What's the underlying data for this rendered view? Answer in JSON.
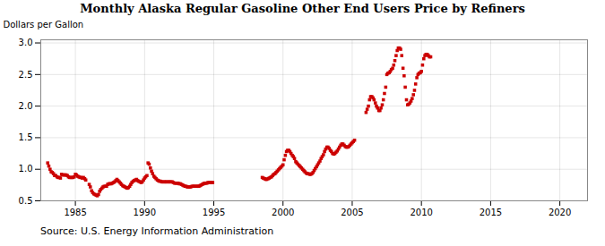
{
  "chart_data": {
    "type": "scatter",
    "title": "Monthly Alaska Regular Gasoline Other End Users Price by Refiners",
    "ylabel": "Dollars per Gallon",
    "annotation": "Source: U.S. Energy Information Administration",
    "xlim": [
      1982.5,
      2022
    ],
    "ylim": [
      0.5,
      3.05
    ],
    "xticks": [
      1985,
      1990,
      1995,
      2000,
      2005,
      2010,
      2015,
      2020
    ],
    "yticks": [
      0.5,
      {
        "value": 1.0,
        "label": "1.0"
      },
      1.5,
      {
        "value": 2.0,
        "label": "2.0"
      },
      2.5,
      {
        "value": 3.0,
        "label": "3.0"
      }
    ],
    "grid": true,
    "color": "#cc0000",
    "marker": "square",
    "x": [
      1983.0,
      1983.08,
      1983.17,
      1983.25,
      1983.33,
      1983.42,
      1983.5,
      1983.58,
      1983.67,
      1983.75,
      1983.83,
      1983.92,
      1984.0,
      1984.08,
      1984.17,
      1984.25,
      1984.33,
      1984.42,
      1984.5,
      1984.58,
      1984.67,
      1984.75,
      1984.83,
      1984.92,
      1985.0,
      1985.08,
      1985.17,
      1985.25,
      1985.33,
      1985.42,
      1985.5,
      1985.58,
      1985.67,
      1985.75,
      1986.0,
      1986.08,
      1986.17,
      1986.25,
      1986.33,
      1986.42,
      1986.5,
      1986.58,
      1986.67,
      1986.75,
      1986.83,
      1986.92,
      1987.0,
      1987.08,
      1987.17,
      1987.25,
      1987.33,
      1987.42,
      1987.5,
      1987.58,
      1987.67,
      1987.75,
      1987.83,
      1987.92,
      1988.0,
      1988.08,
      1988.17,
      1988.25,
      1988.33,
      1988.42,
      1988.5,
      1988.58,
      1988.67,
      1988.75,
      1988.83,
      1988.92,
      1989.0,
      1989.08,
      1989.17,
      1989.25,
      1989.33,
      1989.42,
      1989.5,
      1989.58,
      1989.67,
      1989.75,
      1989.83,
      1989.92,
      1990.0,
      1990.08,
      1990.17,
      1990.25,
      1990.33,
      1990.42,
      1990.5,
      1990.58,
      1990.67,
      1990.75,
      1990.83,
      1990.92,
      1991.0,
      1991.08,
      1991.17,
      1991.25,
      1991.33,
      1991.42,
      1991.5,
      1991.58,
      1991.67,
      1991.75,
      1991.83,
      1991.92,
      1992.0,
      1992.08,
      1992.17,
      1992.25,
      1992.33,
      1992.42,
      1992.5,
      1992.58,
      1992.67,
      1992.75,
      1992.83,
      1992.92,
      1993.0,
      1993.08,
      1993.17,
      1993.25,
      1993.33,
      1993.42,
      1993.5,
      1993.58,
      1993.67,
      1993.75,
      1993.83,
      1993.92,
      1994.0,
      1994.08,
      1994.17,
      1994.25,
      1994.33,
      1994.42,
      1994.5,
      1994.58,
      1994.67,
      1994.75,
      1994.83,
      1994.92,
      1998.5,
      1998.58,
      1998.67,
      1998.75,
      1998.83,
      1998.92,
      1999.0,
      1999.08,
      1999.17,
      1999.25,
      1999.33,
      1999.42,
      1999.5,
      1999.58,
      1999.67,
      1999.75,
      1999.83,
      1999.92,
      2000.0,
      2000.08,
      2000.17,
      2000.25,
      2000.33,
      2000.42,
      2000.5,
      2000.58,
      2000.67,
      2000.75,
      2000.83,
      2000.92,
      2001.0,
      2001.08,
      2001.17,
      2001.25,
      2001.33,
      2001.42,
      2001.5,
      2001.58,
      2001.67,
      2001.75,
      2001.83,
      2001.92,
      2002.0,
      2002.08,
      2002.17,
      2002.25,
      2002.33,
      2002.42,
      2002.5,
      2002.58,
      2002.67,
      2002.75,
      2002.83,
      2002.92,
      2003.0,
      2003.08,
      2003.17,
      2003.25,
      2003.33,
      2003.42,
      2003.5,
      2003.58,
      2003.67,
      2003.75,
      2003.83,
      2003.92,
      2004.0,
      2004.08,
      2004.17,
      2004.25,
      2004.33,
      2004.42,
      2004.5,
      2004.58,
      2004.67,
      2004.75,
      2004.83,
      2004.92,
      2005.0,
      2005.08,
      2005.17,
      2006.0,
      2006.08,
      2006.17,
      2006.25,
      2006.33,
      2006.42,
      2006.5,
      2006.58,
      2006.67,
      2006.75,
      2006.83,
      2006.92,
      2007.0,
      2007.08,
      2007.17,
      2007.25,
      2007.33,
      2007.42,
      2007.5,
      2007.58,
      2007.67,
      2007.75,
      2007.83,
      2007.92,
      2008.0,
      2008.08,
      2008.17,
      2008.25,
      2008.33,
      2008.42,
      2008.5,
      2008.58,
      2008.67,
      2008.75,
      2008.83,
      2008.92,
      2009.0,
      2009.08,
      2009.17,
      2009.25,
      2009.33,
      2009.42,
      2009.5,
      2009.58,
      2009.67,
      2009.75,
      2009.83,
      2009.92,
      2010.0,
      2010.08,
      2010.17,
      2010.25,
      2010.33,
      2010.42,
      2010.5,
      2010.58,
      2010.67
    ],
    "values": [
      1.1,
      1.05,
      1.0,
      0.96,
      0.95,
      0.93,
      0.9,
      0.9,
      0.88,
      0.87,
      0.87,
      0.86,
      0.92,
      0.91,
      0.91,
      0.91,
      0.91,
      0.9,
      0.88,
      0.87,
      0.87,
      0.87,
      0.87,
      0.88,
      0.92,
      0.91,
      0.89,
      0.88,
      0.87,
      0.87,
      0.86,
      0.87,
      0.85,
      0.83,
      0.76,
      0.72,
      0.66,
      0.63,
      0.61,
      0.6,
      0.59,
      0.58,
      0.6,
      0.65,
      0.68,
      0.7,
      0.72,
      0.73,
      0.73,
      0.73,
      0.76,
      0.77,
      0.77,
      0.77,
      0.78,
      0.79,
      0.8,
      0.82,
      0.84,
      0.82,
      0.8,
      0.78,
      0.76,
      0.74,
      0.73,
      0.72,
      0.71,
      0.7,
      0.71,
      0.73,
      0.76,
      0.79,
      0.81,
      0.82,
      0.83,
      0.84,
      0.82,
      0.81,
      0.8,
      0.79,
      0.8,
      0.83,
      0.86,
      0.88,
      0.9,
      1.1,
      1.08,
      1.02,
      0.97,
      0.93,
      0.89,
      0.87,
      0.85,
      0.83,
      0.82,
      0.81,
      0.81,
      0.8,
      0.8,
      0.8,
      0.8,
      0.8,
      0.8,
      0.8,
      0.8,
      0.8,
      0.8,
      0.79,
      0.78,
      0.78,
      0.78,
      0.78,
      0.77,
      0.77,
      0.76,
      0.75,
      0.74,
      0.73,
      0.73,
      0.72,
      0.72,
      0.72,
      0.72,
      0.73,
      0.73,
      0.73,
      0.73,
      0.73,
      0.73,
      0.73,
      0.74,
      0.75,
      0.76,
      0.77,
      0.78,
      0.78,
      0.78,
      0.79,
      0.79,
      0.79,
      0.79,
      0.79,
      0.87,
      0.86,
      0.85,
      0.84,
      0.84,
      0.85,
      0.86,
      0.87,
      0.88,
      0.9,
      0.92,
      0.93,
      0.95,
      0.97,
      0.99,
      1.01,
      1.03,
      1.05,
      1.07,
      1.15,
      1.22,
      1.28,
      1.3,
      1.3,
      1.28,
      1.25,
      1.22,
      1.2,
      1.17,
      1.12,
      1.1,
      1.08,
      1.06,
      1.04,
      1.02,
      1.0,
      0.98,
      0.96,
      0.94,
      0.93,
      0.93,
      0.92,
      0.92,
      0.93,
      0.95,
      0.98,
      1.01,
      1.04,
      1.07,
      1.1,
      1.13,
      1.17,
      1.2,
      1.23,
      1.28,
      1.32,
      1.35,
      1.35,
      1.33,
      1.3,
      1.28,
      1.25,
      1.24,
      1.25,
      1.27,
      1.29,
      1.32,
      1.35,
      1.38,
      1.4,
      1.4,
      1.38,
      1.36,
      1.35,
      1.35,
      1.36,
      1.38,
      1.4,
      1.42,
      1.44,
      1.46,
      1.9,
      1.95,
      2.0,
      2.1,
      2.15,
      2.15,
      2.13,
      2.1,
      2.05,
      2.0,
      1.97,
      1.93,
      1.93,
      1.97,
      2.02,
      2.1,
      2.2,
      2.3,
      2.5,
      2.52,
      2.53,
      2.55,
      2.58,
      2.6,
      2.65,
      2.72,
      2.8,
      2.88,
      2.92,
      2.92,
      2.9,
      2.8,
      2.6,
      2.48,
      2.3,
      2.1,
      2.02,
      2.03,
      2.05,
      2.08,
      2.12,
      2.18,
      2.25,
      2.35,
      2.45,
      2.5,
      2.52,
      2.53,
      2.55,
      2.65,
      2.75,
      2.8,
      2.82,
      2.82,
      2.8,
      2.78,
      2.78
    ]
  }
}
